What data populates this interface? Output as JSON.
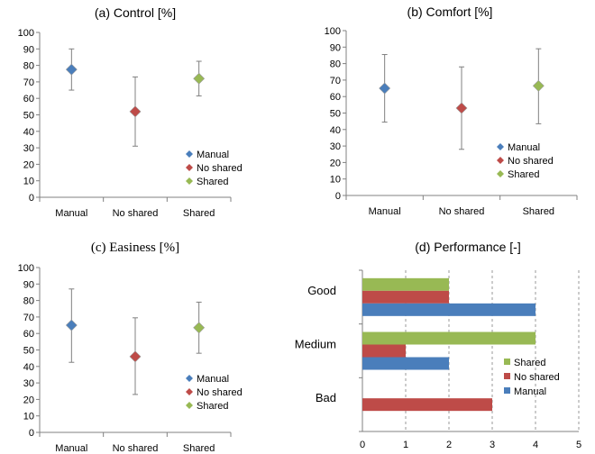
{
  "colors": {
    "Manual": "#4a7ebb",
    "No shared": "#be4b48",
    "Shared": "#98b954"
  },
  "chart_data": [
    {
      "type": "scatter",
      "title": "(a) Control [%]",
      "categories": [
        "Manual",
        "No shared",
        "Shared"
      ],
      "ylim": [
        0,
        100
      ],
      "yticks": [
        "0",
        "10",
        "20",
        "30",
        "40",
        "50",
        "60",
        "70",
        "80",
        "90",
        "100"
      ],
      "series": [
        {
          "name": "Manual",
          "values": [
            77.5
          ],
          "error_low": [
            65
          ],
          "error_high": [
            90
          ]
        },
        {
          "name": "No shared",
          "values": [
            52
          ],
          "error_low": [
            31
          ],
          "error_high": [
            73
          ]
        },
        {
          "name": "Shared",
          "values": [
            72
          ],
          "error_low": [
            61.5
          ],
          "error_high": [
            82.5
          ]
        }
      ],
      "legend": [
        "Manual",
        "No shared",
        "Shared"
      ],
      "legend_position": "bottom-right"
    },
    {
      "type": "scatter",
      "title": "(b) Comfort [%]",
      "categories": [
        "Manual",
        "No shared",
        "Shared"
      ],
      "ylim": [
        0,
        100
      ],
      "yticks": [
        "0",
        "10",
        "20",
        "30",
        "40",
        "50",
        "60",
        "70",
        "80",
        "90",
        "100"
      ],
      "series": [
        {
          "name": "Manual",
          "values": [
            65
          ],
          "error_low": [
            44.5
          ],
          "error_high": [
            85.5
          ]
        },
        {
          "name": "No shared",
          "values": [
            53
          ],
          "error_low": [
            28
          ],
          "error_high": [
            78
          ]
        },
        {
          "name": "Shared",
          "values": [
            66.5
          ],
          "error_low": [
            43.5
          ],
          "error_high": [
            89
          ]
        }
      ],
      "legend": [
        "Manual",
        "No shared",
        "Shared"
      ],
      "legend_position": "bottom-right"
    },
    {
      "type": "scatter",
      "title": "(c) Easiness [%]",
      "categories": [
        "Manual",
        "No shared",
        "Shared"
      ],
      "ylim": [
        0,
        100
      ],
      "yticks": [
        "0",
        "10",
        "20",
        "30",
        "40",
        "50",
        "60",
        "70",
        "80",
        "90",
        "100"
      ],
      "series": [
        {
          "name": "Manual",
          "values": [
            65
          ],
          "error_low": [
            42.5
          ],
          "error_high": [
            87
          ]
        },
        {
          "name": "No shared",
          "values": [
            46
          ],
          "error_low": [
            23
          ],
          "error_high": [
            69.5
          ]
        },
        {
          "name": "Shared",
          "values": [
            63.5
          ],
          "error_low": [
            48
          ],
          "error_high": [
            79
          ]
        }
      ],
      "legend": [
        "Manual",
        "No shared",
        "Shared"
      ],
      "legend_position": "bottom-right"
    },
    {
      "type": "bar",
      "orientation": "horizontal",
      "title": "(d) Performance [-]",
      "categories": [
        "Good",
        "Medium",
        "Bad"
      ],
      "xlim": [
        0,
        5
      ],
      "xticks": [
        "0",
        "1",
        "2",
        "3",
        "4",
        "5"
      ],
      "series": [
        {
          "name": "Shared",
          "values": [
            2,
            4,
            0
          ]
        },
        {
          "name": "No shared",
          "values": [
            2,
            1,
            3
          ]
        },
        {
          "name": "Manual",
          "values": [
            4,
            2,
            0
          ]
        }
      ],
      "legend": [
        "Shared",
        "No shared",
        "Manual"
      ],
      "legend_position": "bottom-right",
      "grid": "vertical dashed"
    }
  ]
}
